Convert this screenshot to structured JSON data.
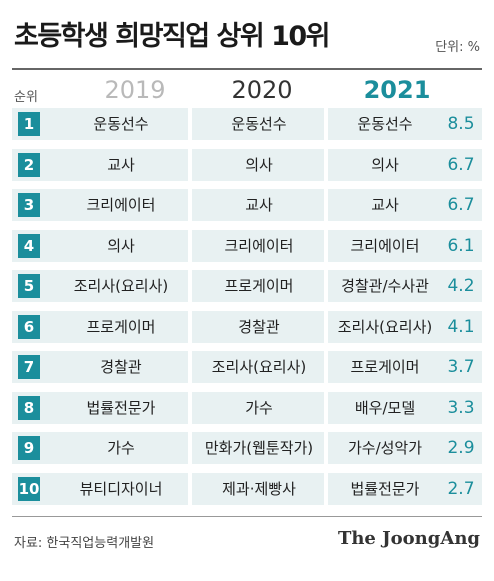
{
  "title": "초등학생 희망직업 상위 10위",
  "unit": "단위: %",
  "rank_header": "순위",
  "years": [
    "2019",
    "2020",
    "2021"
  ],
  "source": "자료: 한국직업능력개발원",
  "brand": "The JoongAng",
  "colors": {
    "accent": "#1b8e9c",
    "row_bg": "#e8f1f2",
    "muted_year": "#b9b9b9"
  },
  "chart_data": {
    "type": "table",
    "title": "초등학생 희망직업 상위 10위",
    "unit": "%",
    "columns": [
      "순위",
      "2019",
      "2020",
      "2021",
      "2021 %"
    ],
    "rows": [
      {
        "rank": "1",
        "y2019": "운동선수",
        "y2020": "운동선수",
        "y2021": "운동선수",
        "value": "8.5"
      },
      {
        "rank": "2",
        "y2019": "교사",
        "y2020": "의사",
        "y2021": "의사",
        "value": "6.7"
      },
      {
        "rank": "3",
        "y2019": "크리에이터",
        "y2020": "교사",
        "y2021": "교사",
        "value": "6.7"
      },
      {
        "rank": "4",
        "y2019": "의사",
        "y2020": "크리에이터",
        "y2021": "크리에이터",
        "value": "6.1"
      },
      {
        "rank": "5",
        "y2019": "조리사(요리사)",
        "y2020": "프로게이머",
        "y2021": "경찰관/수사관",
        "value": "4.2"
      },
      {
        "rank": "6",
        "y2019": "프로게이머",
        "y2020": "경찰관",
        "y2021": "조리사(요리사)",
        "value": "4.1"
      },
      {
        "rank": "7",
        "y2019": "경찰관",
        "y2020": "조리사(요리사)",
        "y2021": "프로게이머",
        "value": "3.7"
      },
      {
        "rank": "8",
        "y2019": "법률전문가",
        "y2020": "가수",
        "y2021": "배우/모델",
        "value": "3.3"
      },
      {
        "rank": "9",
        "y2019": "가수",
        "y2020": "만화가(웹툰작가)",
        "y2021": "가수/성악가",
        "value": "2.9"
      },
      {
        "rank": "10",
        "y2019": "뷰티디자이너",
        "y2020": "제과·제빵사",
        "y2021": "법률전문가",
        "value": "2.7"
      }
    ]
  }
}
